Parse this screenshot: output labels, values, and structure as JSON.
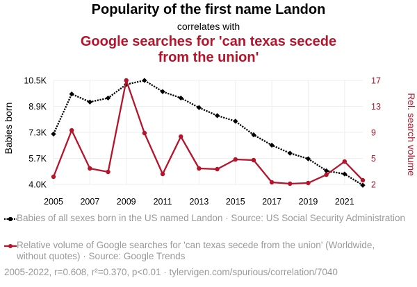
{
  "header": {
    "title": "Popularity of the first name Landon",
    "subtitle": "correlates with",
    "title2": "Google searches for 'can texas secede from the union'"
  },
  "chart_data": {
    "type": "line",
    "x": [
      2005,
      2006,
      2007,
      2008,
      2009,
      2010,
      2011,
      2012,
      2013,
      2014,
      2015,
      2016,
      2017,
      2018,
      2019,
      2020,
      2021,
      2022
    ],
    "x_ticks": [
      "2005",
      "2007",
      "2009",
      "2011",
      "2013",
      "2015",
      "2017",
      "2019",
      "2021"
    ],
    "series": [
      {
        "name": "Babies of all sexes born in the US named Landon · Source: US Social Security Administration",
        "axis": "left",
        "color": "#000000",
        "style": "dotted",
        "values": [
          7150,
          9650,
          9150,
          9400,
          10250,
          10500,
          9800,
          9400,
          8800,
          8300,
          7950,
          7100,
          6450,
          5950,
          5600,
          4850,
          4650,
          3950
        ]
      },
      {
        "name": "Relative volume of Google searches for 'can texas secede from the union' (Worldwide, without quotes) · Source: Google Trends",
        "axis": "right",
        "color": "#b5142a",
        "style": "solid",
        "values": [
          3.1,
          9.8,
          4.3,
          3.8,
          17,
          9.4,
          3.5,
          8.9,
          4.3,
          4.2,
          5.6,
          5.5,
          2.3,
          2.1,
          2.2,
          3.4,
          5.3,
          2.6
        ]
      }
    ],
    "y_left": {
      "label": "Babies born",
      "ticks": [
        "4.0K",
        "5.7K",
        "7.3K",
        "8.9K",
        "10.5K"
      ],
      "range": [
        4000,
        10500
      ]
    },
    "y_right": {
      "label": "Rel. search volume",
      "ticks": [
        "2",
        "5",
        "9",
        "13",
        "17"
      ],
      "range": [
        2,
        17
      ]
    },
    "grid": true
  },
  "footer": "2005-2022, r=0.608, r²=0.370, p<0.01 · tylervigen.com/spurious/correlation/7040"
}
